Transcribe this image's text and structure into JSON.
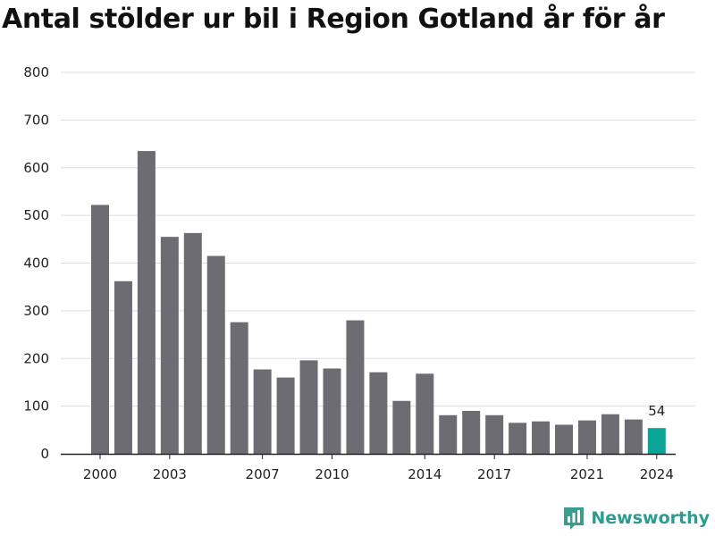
{
  "title": "Antal stölder ur bil i Region Gotland år för år",
  "brand": {
    "name": "Newsworthy",
    "icon": "bar-chart-logo-icon",
    "color": "#3a9d8f"
  },
  "colors": {
    "bar": "#6d6c72",
    "highlight": "#0aa596",
    "grid": "#dddddd",
    "axis": "#222222"
  },
  "chart_data": {
    "type": "bar",
    "title": "Antal stölder ur bil i Region Gotland år för år",
    "xlabel": "",
    "ylabel": "",
    "categories": [
      "2000",
      "2001",
      "2002",
      "2003",
      "2004",
      "2005",
      "2006",
      "2007",
      "2008",
      "2009",
      "2010",
      "2011",
      "2012",
      "2013",
      "2014",
      "2015",
      "2016",
      "2017",
      "2018",
      "2019",
      "2020",
      "2021",
      "2022",
      "2023",
      "2024"
    ],
    "values": [
      522,
      362,
      635,
      455,
      463,
      415,
      276,
      177,
      160,
      196,
      179,
      280,
      171,
      111,
      168,
      81,
      90,
      81,
      65,
      68,
      61,
      70,
      83,
      72,
      54
    ],
    "ylim": [
      0,
      800
    ],
    "yticks": [
      0,
      100,
      200,
      300,
      400,
      500,
      600,
      700,
      800
    ],
    "xtick_labels": [
      "2000",
      "2003",
      "2007",
      "2010",
      "2014",
      "2017",
      "2021",
      "2024"
    ],
    "highlight_category": "2024",
    "data_labels": [
      {
        "category": "2024",
        "text": "54"
      }
    ],
    "grid": "horizontal",
    "legend": "none"
  }
}
